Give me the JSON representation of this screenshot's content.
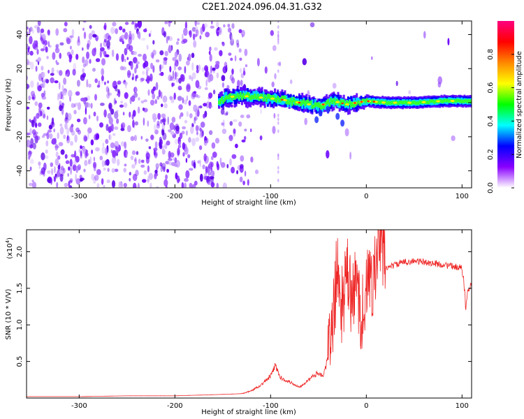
{
  "title": "C2E1.2024.096.04.31.G32",
  "chart_data": [
    {
      "type": "heatmap",
      "xlabel": "Height of straight line (km)",
      "ylabel": "Frequency (Hz)",
      "xlim": [
        -355,
        110
      ],
      "ylim": [
        -50,
        48
      ],
      "xticks": [
        -300,
        -200,
        -100,
        0,
        100
      ],
      "yticks": [
        -40,
        -20,
        0,
        20,
        40
      ],
      "colorbar": {
        "label": "Normalized spectral amplitude",
        "range": [
          0,
          1
        ],
        "ticks": [
          0.0,
          0.2,
          0.4,
          0.6,
          0.8
        ],
        "colors": [
          "#ffffff",
          "#8a00ff",
          "#0000ff",
          "#00ffff",
          "#00ff00",
          "#ffff00",
          "#ff8800",
          "#ff0000",
          "#ff0080"
        ]
      },
      "ridge": {
        "description_points_x": [
          -150,
          -130,
          -110,
          -90,
          -70,
          -50,
          -35,
          -20,
          0,
          20,
          50,
          80,
          110
        ],
        "description_points_y": [
          3,
          4,
          3,
          2,
          0,
          -2,
          1,
          -1,
          1,
          0,
          0,
          1,
          1
        ]
      }
    },
    {
      "type": "line",
      "xlabel": "Height of straight line (km)",
      "ylabel": "SNR (10 * V/V)",
      "yscale_label": "(x10",
      "yscale_exp": "4",
      "xlim": [
        -355,
        110
      ],
      "ylim": [
        0,
        2.3
      ],
      "xticks": [
        -300,
        -200,
        -100,
        0,
        100
      ],
      "yticks": [
        0.5,
        1.0,
        1.5,
        2.0
      ],
      "ytick_labels": [
        "0.5",
        "1.0",
        "1.5",
        "2.0"
      ],
      "series": [
        {
          "color": "#ee2222",
          "x": [
            -355,
            -300,
            -250,
            -200,
            -150,
            -130,
            -120,
            -110,
            -100,
            -95,
            -90,
            -80,
            -70,
            -60,
            -50,
            -45,
            -40,
            -35,
            -30,
            -28,
            -25,
            -20,
            -15,
            -10,
            -5,
            0,
            5,
            10,
            15,
            20,
            30,
            40,
            50,
            60,
            70,
            80,
            90,
            100,
            102,
            104,
            106,
            110
          ],
          "y": [
            0.02,
            0.02,
            0.03,
            0.03,
            0.05,
            0.06,
            0.1,
            0.18,
            0.3,
            0.45,
            0.28,
            0.22,
            0.15,
            0.25,
            0.35,
            0.3,
            0.55,
            1.05,
            1.85,
            1.45,
            1.25,
            1.7,
            1.3,
            1.6,
            1.1,
            1.5,
            1.6,
            1.75,
            2.2,
            1.78,
            1.82,
            1.86,
            1.87,
            1.86,
            1.84,
            1.82,
            1.8,
            1.78,
            1.6,
            1.2,
            1.48,
            1.52
          ]
        }
      ]
    }
  ]
}
